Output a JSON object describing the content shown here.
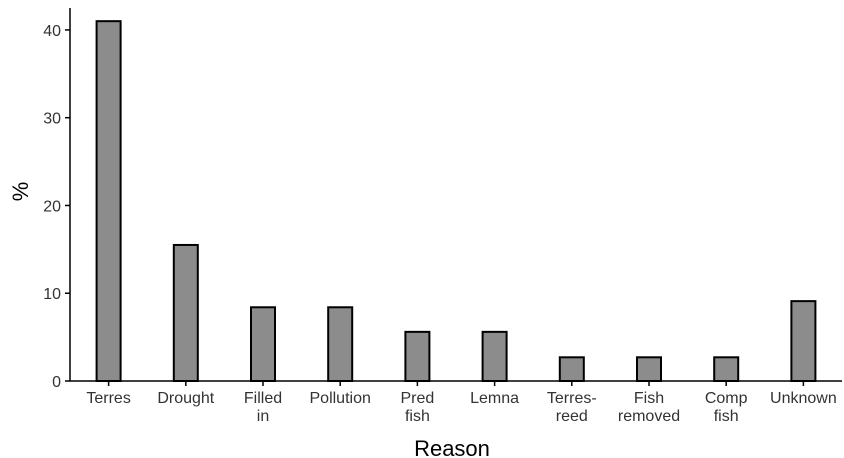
{
  "chart_data": {
    "type": "bar",
    "title": "",
    "xlabel": "Reason",
    "ylabel": "%",
    "ylim": [
      0,
      42.5
    ],
    "yticks": [
      0,
      10,
      20,
      30,
      40
    ],
    "grid": false,
    "bar_color": "#8c8c8c",
    "categories": [
      [
        "Terres"
      ],
      [
        "Drought"
      ],
      [
        "Filled",
        "in"
      ],
      [
        "Pollution"
      ],
      [
        "Pred",
        "fish"
      ],
      [
        "Lemna"
      ],
      [
        "Terres-",
        "reed"
      ],
      [
        "Fish",
        "removed"
      ],
      [
        "Comp",
        "fish"
      ],
      [
        "Unknown"
      ]
    ],
    "values": [
      41,
      15.5,
      8.4,
      8.4,
      5.6,
      5.6,
      2.7,
      2.7,
      2.7,
      9.1
    ]
  }
}
